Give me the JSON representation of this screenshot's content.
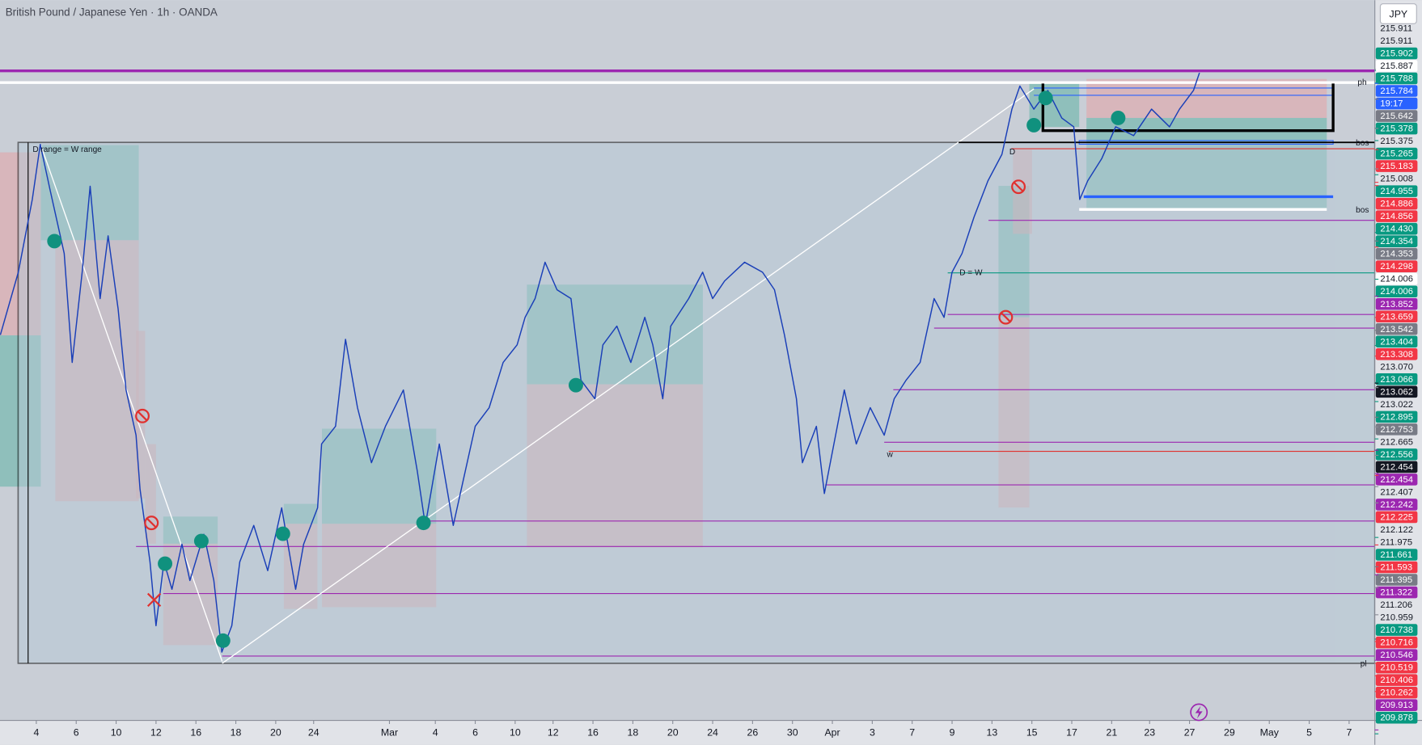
{
  "chart_data": {
    "type": "line",
    "title": "British Pound / Japanese Yen · 1h · OANDA",
    "currency": "JPY",
    "color": "#1a3fb8",
    "xlim": [
      -1.82,
      67.09
    ],
    "ylim": [
      210.0,
      216.54
    ],
    "x": [
      -1.8,
      -0.9,
      -0.2,
      0.2,
      0.7,
      1.4,
      1.8,
      2.3,
      2.7,
      3.2,
      3.6,
      4.1,
      4.5,
      5.0,
      5.2,
      5.7,
      6.0,
      6.4,
      6.8,
      7.3,
      7.7,
      8.4,
      8.9,
      9.3,
      9.8,
      10.2,
      10.9,
      11.6,
      12.3,
      13.0,
      13.4,
      14.1,
      14.3,
      15.0,
      15.5,
      16.1,
      16.8,
      17.5,
      18.4,
      19.1,
      19.5,
      20.2,
      20.9,
      21.4,
      22.0,
      22.7,
      23.4,
      24.1,
      24.5,
      25.0,
      25.5,
      26.1,
      26.8,
      27.3,
      28.0,
      28.4,
      29.1,
      29.8,
      30.5,
      30.9,
      31.4,
      31.8,
      32.7,
      33.4,
      33.9,
      34.5,
      35.5,
      36.4,
      37.0,
      37.5,
      38.1,
      38.4,
      39.1,
      39.5,
      40.5,
      41.1,
      41.8,
      42.5,
      43.0,
      43.6,
      44.3,
      45.0,
      45.5,
      45.9,
      46.4,
      47.0,
      47.7,
      48.4,
      48.9,
      49.3,
      50.0,
      50.7,
      51.4,
      52.0,
      52.3,
      52.7,
      53.4,
      54.1,
      55.0,
      55.9,
      56.8,
      57.3,
      58.0,
      58.3
    ],
    "values": [
      213.5,
      214.07,
      214.73,
      215.23,
      214.81,
      214.24,
      213.25,
      214.07,
      214.85,
      213.83,
      214.4,
      213.74,
      213.0,
      212.59,
      212.1,
      211.44,
      210.86,
      211.44,
      211.19,
      211.6,
      211.27,
      211.69,
      211.27,
      210.62,
      210.86,
      211.44,
      211.77,
      211.36,
      211.93,
      211.19,
      211.6,
      211.93,
      212.51,
      212.67,
      213.46,
      212.84,
      212.34,
      212.67,
      213.0,
      212.26,
      211.77,
      212.51,
      211.77,
      212.18,
      212.67,
      212.84,
      213.25,
      213.41,
      213.66,
      213.83,
      214.16,
      213.91,
      213.83,
      213.09,
      212.92,
      213.41,
      213.58,
      213.25,
      213.66,
      213.41,
      212.92,
      213.58,
      213.83,
      214.07,
      213.83,
      213.99,
      214.16,
      214.07,
      213.91,
      213.5,
      212.92,
      212.34,
      212.67,
      212.06,
      213.0,
      212.51,
      212.84,
      212.59,
      212.92,
      213.09,
      213.25,
      213.83,
      213.66,
      214.07,
      214.24,
      214.57,
      214.9,
      215.14,
      215.55,
      215.76,
      215.55,
      215.72,
      215.47,
      215.39,
      214.73,
      214.9,
      215.1,
      215.39,
      215.31,
      215.55,
      215.39,
      215.55,
      215.72,
      215.88
    ],
    "xticks": [
      {
        "value": 0,
        "label": "4"
      },
      {
        "value": 2,
        "label": "6"
      },
      {
        "value": 4,
        "label": "10"
      },
      {
        "value": 6,
        "label": "12"
      },
      {
        "value": 8,
        "label": "16"
      },
      {
        "value": 10,
        "label": "18"
      },
      {
        "value": 12,
        "label": "20"
      },
      {
        "value": 13.9,
        "label": "24"
      },
      {
        "value": 17.7,
        "label": "Mar"
      },
      {
        "value": 20.0,
        "label": "4"
      },
      {
        "value": 22.0,
        "label": "6"
      },
      {
        "value": 24.0,
        "label": "10"
      },
      {
        "value": 25.9,
        "label": "12"
      },
      {
        "value": 27.9,
        "label": "16"
      },
      {
        "value": 29.9,
        "label": "18"
      },
      {
        "value": 31.9,
        "label": "20"
      },
      {
        "value": 33.9,
        "label": "24"
      },
      {
        "value": 35.9,
        "label": "26"
      },
      {
        "value": 37.9,
        "label": "30"
      },
      {
        "value": 39.9,
        "label": "Apr"
      },
      {
        "value": 41.9,
        "label": "3"
      },
      {
        "value": 43.9,
        "label": "7"
      },
      {
        "value": 45.9,
        "label": "9"
      },
      {
        "value": 47.9,
        "label": "13"
      },
      {
        "value": 49.9,
        "label": "15"
      },
      {
        "value": 51.9,
        "label": "17"
      },
      {
        "value": 53.9,
        "label": "21"
      },
      {
        "value": 55.8,
        "label": "23"
      },
      {
        "value": 57.8,
        "label": "27"
      },
      {
        "value": 59.8,
        "label": "29"
      },
      {
        "value": 61.8,
        "label": "May"
      },
      {
        "value": 63.8,
        "label": "5"
      },
      {
        "value": 65.8,
        "label": "7"
      }
    ],
    "price_labels": [
      {
        "value": 215.911,
        "label": "215.911"
      },
      {
        "value": 215.911,
        "label": "215.911"
      },
      {
        "value": 215.902,
        "label": "215.902",
        "color": "#089981"
      },
      {
        "value": 215.887,
        "label": "215.887",
        "color": "#ffffff"
      },
      {
        "value": 215.788,
        "label": "215.788",
        "color": "#089981"
      },
      {
        "value": 215.784,
        "label": "215.784",
        "color": "#2962ff"
      },
      {
        "label": "19:17",
        "color": "#2962ff"
      },
      {
        "value": 215.642,
        "label": "215.642",
        "color": "#787b86"
      },
      {
        "value": 215.378,
        "label": "215.378",
        "color": "#089981"
      },
      {
        "value": 215.375,
        "label": "215.375"
      },
      {
        "value": 215.265,
        "label": "215.265",
        "color": "#089981"
      },
      {
        "value": 215.183,
        "label": "215.183",
        "color": "#f23645"
      },
      {
        "value": 215.008,
        "label": "215.008"
      },
      {
        "value": 214.955,
        "label": "214.955",
        "color": "#089981"
      },
      {
        "value": 214.886,
        "label": "214.886",
        "color": "#f23645"
      },
      {
        "value": 214.856,
        "label": "214.856",
        "color": "#f23645"
      },
      {
        "value": 214.43,
        "label": "214.430",
        "color": "#089981"
      },
      {
        "value": 214.354,
        "label": "214.354",
        "color": "#089981"
      },
      {
        "value": 214.353,
        "label": "214.353",
        "color": "#787b86"
      },
      {
        "value": 214.298,
        "label": "214.298",
        "color": "#f23645"
      },
      {
        "value": 214.006,
        "label": "214.006",
        "color": "#ffffff"
      },
      {
        "value": 214.006,
        "label": "214.006",
        "color": "#089981"
      },
      {
        "value": 213.852,
        "label": "213.852",
        "color": "#9c27b0"
      },
      {
        "value": 213.659,
        "label": "213.659",
        "color": "#f23645"
      },
      {
        "value": 213.542,
        "label": "213.542",
        "color": "#787b86"
      },
      {
        "value": 213.404,
        "label": "213.404",
        "color": "#089981"
      },
      {
        "value": 213.308,
        "label": "213.308",
        "color": "#f23645"
      },
      {
        "value": 213.07,
        "label": "213.070"
      },
      {
        "value": 213.066,
        "label": "213.066",
        "color": "#089981"
      },
      {
        "value": 213.062,
        "label": "213.062",
        "color": "#131722"
      },
      {
        "value": 213.022,
        "label": "213.022"
      },
      {
        "value": 212.895,
        "label": "212.895",
        "color": "#089981"
      },
      {
        "value": 212.753,
        "label": "212.753",
        "color": "#787b86"
      },
      {
        "value": 212.665,
        "label": "212.665"
      },
      {
        "value": 212.556,
        "label": "212.556",
        "color": "#089981"
      },
      {
        "value": 212.454,
        "label": "212.454",
        "color": "#131722"
      },
      {
        "value": 212.454,
        "label": "212.454",
        "color": "#9c27b0"
      },
      {
        "value": 212.407,
        "label": "212.407"
      },
      {
        "value": 212.242,
        "label": "212.242",
        "color": "#9c27b0"
      },
      {
        "value": 212.225,
        "label": "212.225",
        "color": "#f23645"
      },
      {
        "value": 212.122,
        "label": "212.122"
      },
      {
        "value": 211.975,
        "label": "211.975"
      },
      {
        "value": 211.661,
        "label": "211.661",
        "color": "#089981"
      },
      {
        "value": 211.593,
        "label": "211.593",
        "color": "#f23645"
      },
      {
        "value": 211.395,
        "label": "211.395",
        "color": "#787b86"
      },
      {
        "value": 211.322,
        "label": "211.322",
        "color": "#9c27b0"
      },
      {
        "value": 211.206,
        "label": "211.206"
      },
      {
        "value": 210.959,
        "label": "210.959"
      },
      {
        "value": 210.738,
        "label": "210.738",
        "color": "#089981"
      },
      {
        "value": 210.716,
        "label": "210.716",
        "color": "#f23645"
      },
      {
        "value": 210.546,
        "label": "210.546",
        "color": "#9c27b0"
      },
      {
        "value": 210.519,
        "label": "210.519",
        "color": "#f23645"
      },
      {
        "value": 210.406,
        "label": "210.406",
        "color": "#f23645"
      },
      {
        "value": 210.262,
        "label": "210.262",
        "color": "#f23645"
      },
      {
        "value": 209.913,
        "label": "209.913",
        "color": "#9c27b0"
      },
      {
        "value": 209.878,
        "label": "209.878",
        "color": "#089981"
      }
    ],
    "annotations": [
      "D range = W range",
      "bos",
      "bos",
      "pl",
      "D = W",
      "w",
      "D",
      "ph"
    ]
  }
}
